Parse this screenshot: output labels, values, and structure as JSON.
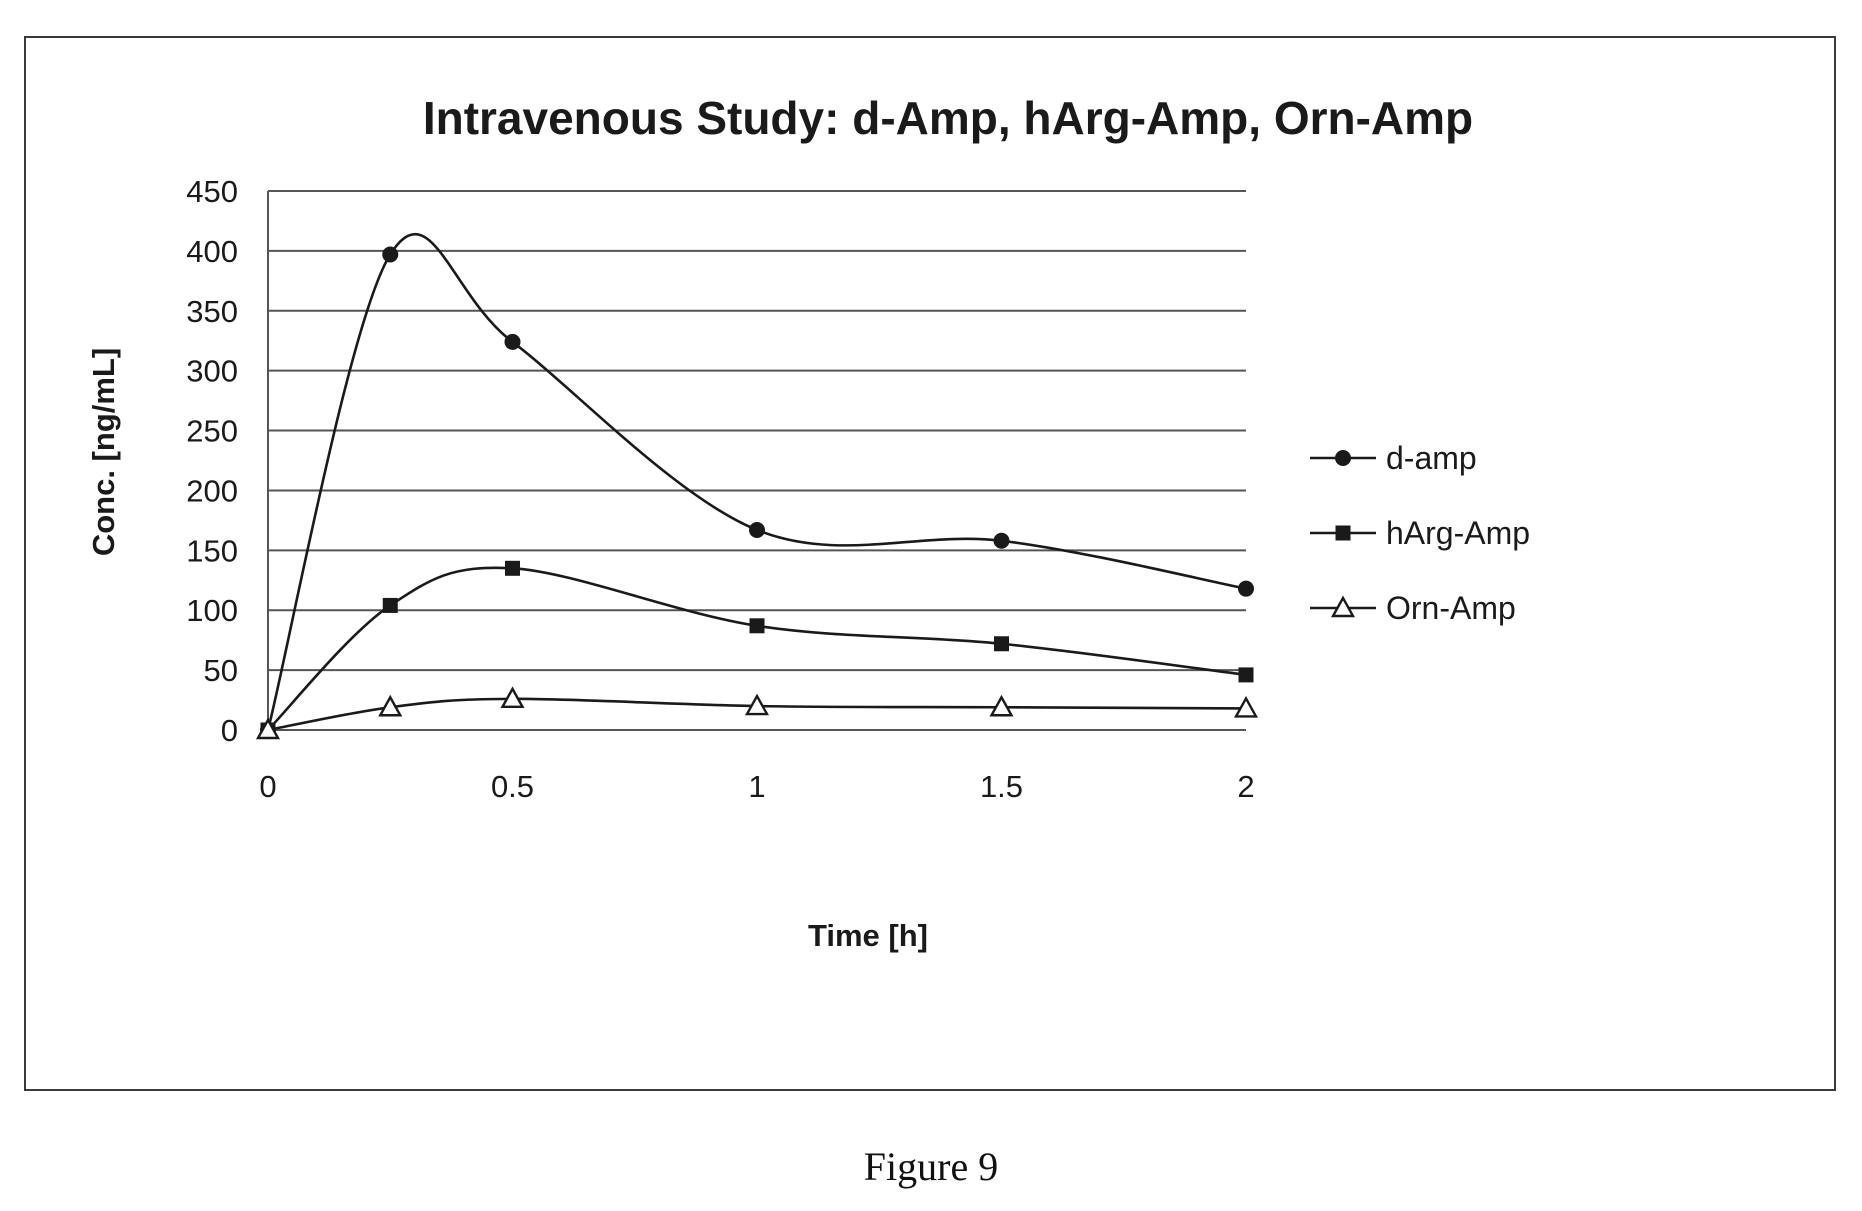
{
  "caption": "Figure 9",
  "chart_data": {
    "type": "line",
    "title": "Intravenous Study: d-Amp, hArg-Amp, Orn-Amp",
    "xlabel": "Time [h]",
    "ylabel": "Conc. [ng/mL]",
    "xlim": [
      0,
      2
    ],
    "ylim": [
      0,
      450
    ],
    "xticks": [
      "0",
      "0.5",
      "1",
      "1.5",
      "2"
    ],
    "yticks": [
      "0",
      "50",
      "100",
      "150",
      "200",
      "250",
      "300",
      "350",
      "400",
      "450"
    ],
    "grid": true,
    "smooth": true,
    "legend_position": "right",
    "x": [
      0,
      0.25,
      0.5,
      1,
      1.5,
      2
    ],
    "series": [
      {
        "name": "d-amp",
        "marker": "circle",
        "values": [
          0,
          397,
          324,
          167,
          158,
          118
        ]
      },
      {
        "name": "hArg-Amp",
        "marker": "square",
        "values": [
          0,
          104,
          135,
          87,
          72,
          46
        ]
      },
      {
        "name": "Orn-Amp",
        "marker": "triangle-open",
        "values": [
          0,
          19,
          26,
          20,
          19,
          18
        ]
      }
    ]
  }
}
